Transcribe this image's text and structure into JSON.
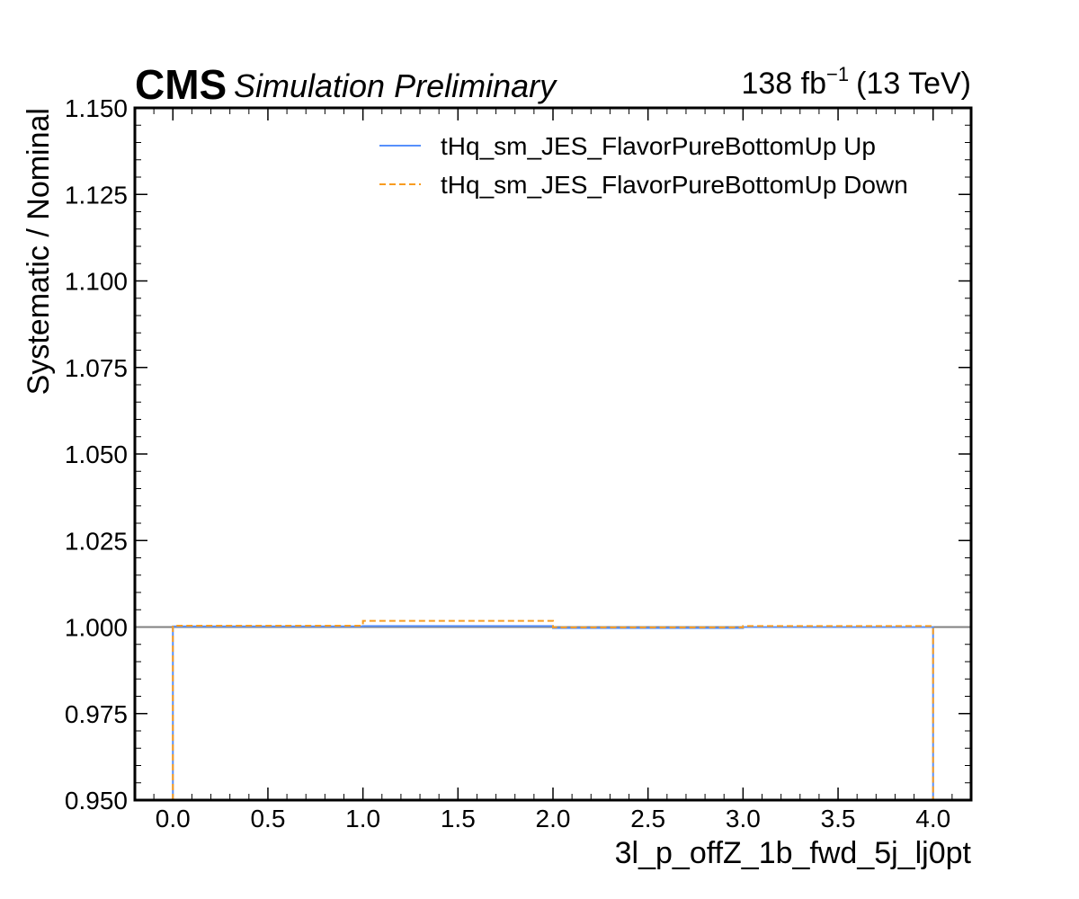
{
  "header": {
    "experiment": "CMS",
    "status": "Simulation Preliminary",
    "lumi_value": "138 fb",
    "lumi_exponent": "−1",
    "energy": "(13 TeV)"
  },
  "chart_data": {
    "type": "line",
    "step": true,
    "xlabel": "3l_p_offZ_1b_fwd_5j_lj0pt",
    "ylabel": "Systematic / Nominal",
    "xlim": [
      -0.2,
      4.2
    ],
    "ylim": [
      0.95,
      1.15
    ],
    "xticks": [
      0.0,
      0.5,
      1.0,
      1.5,
      2.0,
      2.5,
      3.0,
      3.5,
      4.0
    ],
    "xtick_labels": [
      "0.0",
      "0.5",
      "1.0",
      "1.5",
      "2.0",
      "2.5",
      "3.0",
      "3.5",
      "4.0"
    ],
    "yticks": [
      0.95,
      0.975,
      1.0,
      1.025,
      1.05,
      1.075,
      1.1,
      1.125,
      1.15
    ],
    "ytick_labels": [
      "0.950",
      "0.975",
      "1.000",
      "1.025",
      "1.050",
      "1.075",
      "1.100",
      "1.125",
      "1.150"
    ],
    "reference_line": 1.0,
    "reference_color": "#808080",
    "bin_edges": [
      0,
      1,
      2,
      3,
      4
    ],
    "legend_position": "top-right",
    "series": [
      {
        "name": "tHq_sm_JES_FlavorPureBottomUp Up",
        "color": "#5790fc",
        "style": "solid",
        "values": [
          1.0002,
          1.0003,
          0.9997,
          1.0
        ]
      },
      {
        "name": "tHq_sm_JES_FlavorPureBottomUp Down",
        "color": "#f89c20",
        "style": "dashed",
        "values": [
          1.0004,
          1.0018,
          0.9999,
          1.0003
        ]
      }
    ]
  }
}
